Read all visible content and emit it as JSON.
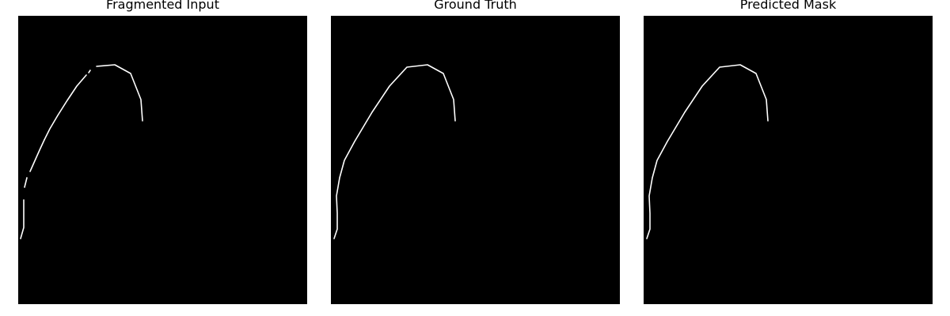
{
  "panels": [
    {
      "title": "Fragmented Input"
    },
    {
      "title": "Ground Truth"
    },
    {
      "title": "Predicted Mask"
    }
  ],
  "colors": {
    "background": "#000000",
    "stroke": "#ffffff",
    "page": "#ffffff"
  }
}
